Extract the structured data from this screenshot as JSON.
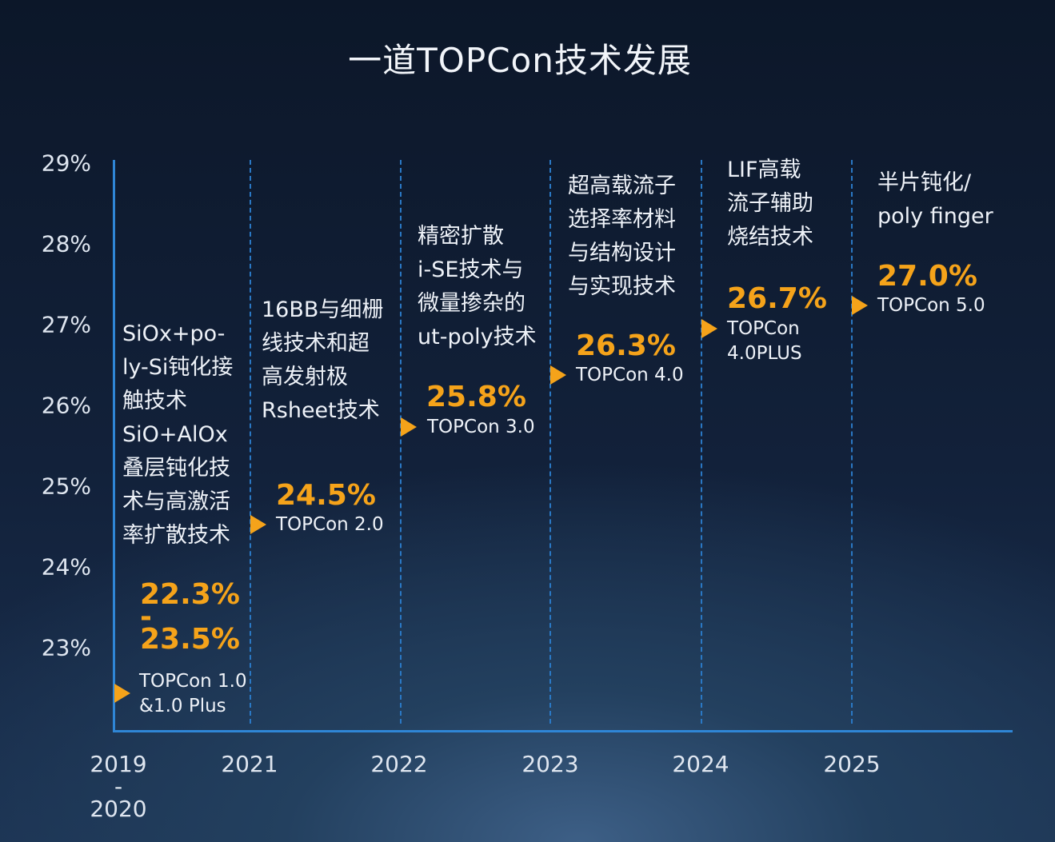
{
  "title": "一道TOPCon技术发展",
  "chart_data": {
    "type": "timeline",
    "title": "一道TOPCon技术发展",
    "ylabel": "",
    "xlabel": "",
    "yticks": [
      "29%",
      "28%",
      "27%",
      "26%",
      "25%",
      "24%",
      "23%"
    ],
    "ylim": [
      22.3,
      29
    ],
    "categories": [
      "2019\n-\n2020",
      "2021",
      "2022",
      "2023",
      "2024",
      "2025"
    ],
    "stages": [
      {
        "year": "2019\n-\n2020",
        "efficiency": 22.3,
        "efficiency_high": 23.5,
        "value_label": "22.3%\n-\n23.5%",
        "name": "TOPCon 1.0\n&1.0 Plus",
        "description": "SiOx+po-\nly-Si钝化接\n触技术\nSiO+AlOx\n叠层钝化技\n术与高激活\n率扩散技术"
      },
      {
        "year": "2021",
        "efficiency": 24.5,
        "value_label": "24.5%",
        "name": "TOPCon 2.0",
        "description": "16BB与细栅\n线技术和超\n高发射极\nRsheet技术"
      },
      {
        "year": "2022",
        "efficiency": 25.8,
        "value_label": "25.8%",
        "name": "TOPCon 3.0",
        "description": "精密扩散\ni-SE技术与\n微量掺杂的\nut-poly技术"
      },
      {
        "year": "2023",
        "efficiency": 26.3,
        "value_label": "26.3%",
        "name": "TOPCon 4.0",
        "description": "超高载流子\n选择率材料\n与结构设计\n与实现技术"
      },
      {
        "year": "2024",
        "efficiency": 26.7,
        "value_label": "26.7%",
        "name": "TOPCon\n4.0PLUS",
        "description": "LIF高载\n流子辅助\n烧结技术"
      },
      {
        "year": "2025",
        "efficiency": 27.0,
        "value_label": "27.0%",
        "name": "TOPCon 5.0",
        "description": "半片钝化/\npoly finger"
      }
    ],
    "colors": {
      "accent": "#f5a31a",
      "axis": "#2f86d6"
    }
  }
}
